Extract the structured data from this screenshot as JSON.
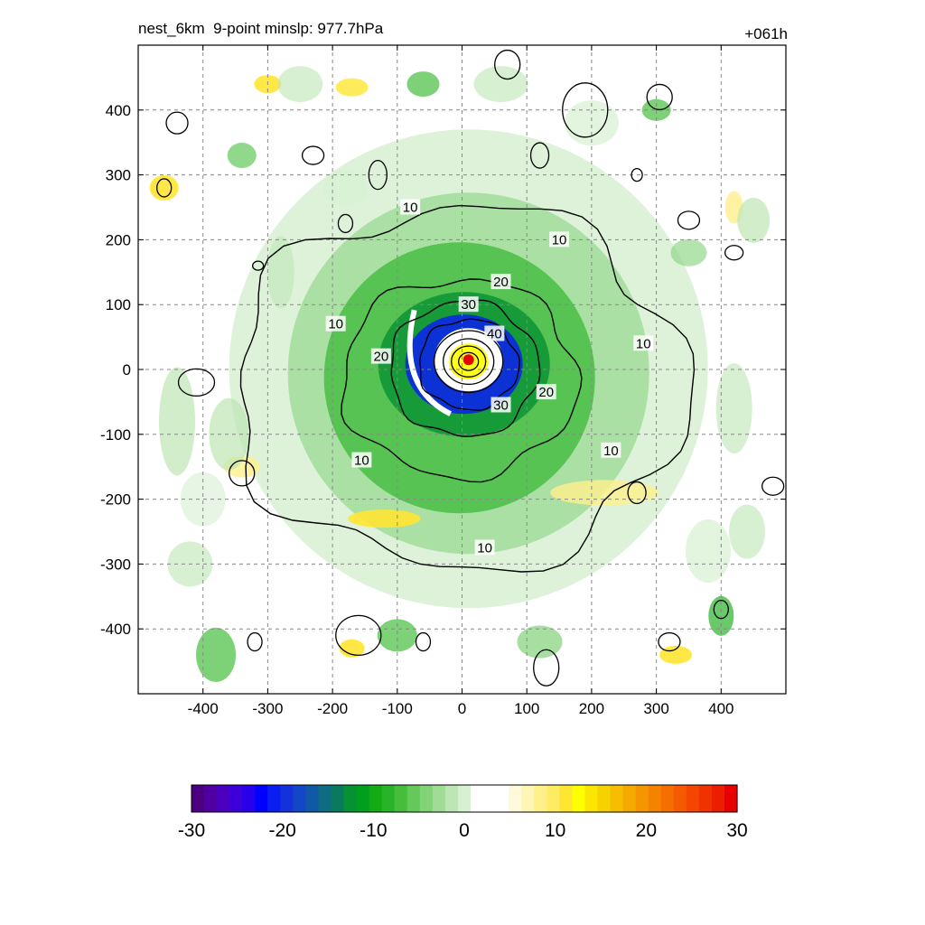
{
  "header": {
    "left_title": "nest_6km  9-point minslp: 977.7hPa",
    "right_title": "+061h"
  },
  "chart_data": {
    "type": "heatmap",
    "title": "nest_6km  9-point minslp: 977.7hPa",
    "time_label": "+061h",
    "xlabel": "",
    "ylabel": "",
    "xlim": [
      -500,
      500
    ],
    "ylim": [
      -500,
      500
    ],
    "x_ticks": [
      -400,
      -300,
      -200,
      -100,
      0,
      100,
      200,
      300,
      400
    ],
    "y_ticks": [
      400,
      300,
      200,
      100,
      0,
      -100,
      -200,
      -300,
      -400
    ],
    "grid": true,
    "storm_center": [
      10,
      15
    ],
    "contour_levels": [
      10,
      20,
      30,
      40
    ],
    "contour_labels": [
      {
        "text": "10",
        "x": -80,
        "y": 250
      },
      {
        "text": "10",
        "x": 150,
        "y": 200
      },
      {
        "text": "10",
        "x": -195,
        "y": 70
      },
      {
        "text": "10",
        "x": 280,
        "y": 40
      },
      {
        "text": "10",
        "x": -155,
        "y": -140
      },
      {
        "text": "10",
        "x": 230,
        "y": -125
      },
      {
        "text": "10",
        "x": 35,
        "y": -275
      },
      {
        "text": "20",
        "x": 60,
        "y": 135
      },
      {
        "text": "20",
        "x": -125,
        "y": 20
      },
      {
        "text": "20",
        "x": 130,
        "y": -35
      },
      {
        "text": "30",
        "x": 10,
        "y": 100
      },
      {
        "text": "30",
        "x": 60,
        "y": -55
      },
      {
        "text": "40",
        "x": 50,
        "y": 55
      }
    ],
    "colorbar": {
      "min": -30,
      "max": 30,
      "tick_labels": [
        "-30",
        "-20",
        "-10",
        "0",
        "10",
        "20",
        "30"
      ],
      "colors": [
        "#4b0082",
        "#5000a0",
        "#4a00be",
        "#3c00d8",
        "#2800ea",
        "#0000ff",
        "#0a1ef0",
        "#1432dc",
        "#1446c8",
        "#105aa5",
        "#0e6b82",
        "#0a7a5f",
        "#069132",
        "#00a01e",
        "#14aa14",
        "#28b428",
        "#46be3c",
        "#64c85a",
        "#82d278",
        "#a0dc96",
        "#bee6b4",
        "#d7f0d2",
        "#ffffff",
        "#ffffff",
        "#ffffff",
        "#fffadc",
        "#fff5b4",
        "#fff08c",
        "#ffeb64",
        "#ffe632",
        "#ffff00",
        "#fae600",
        "#f5d200",
        "#f5be00",
        "#f5aa00",
        "#f59600",
        "#f58200",
        "#f56e00",
        "#f55a00",
        "#f54600",
        "#f03200",
        "#eb1e00",
        "#e60000"
      ]
    }
  }
}
